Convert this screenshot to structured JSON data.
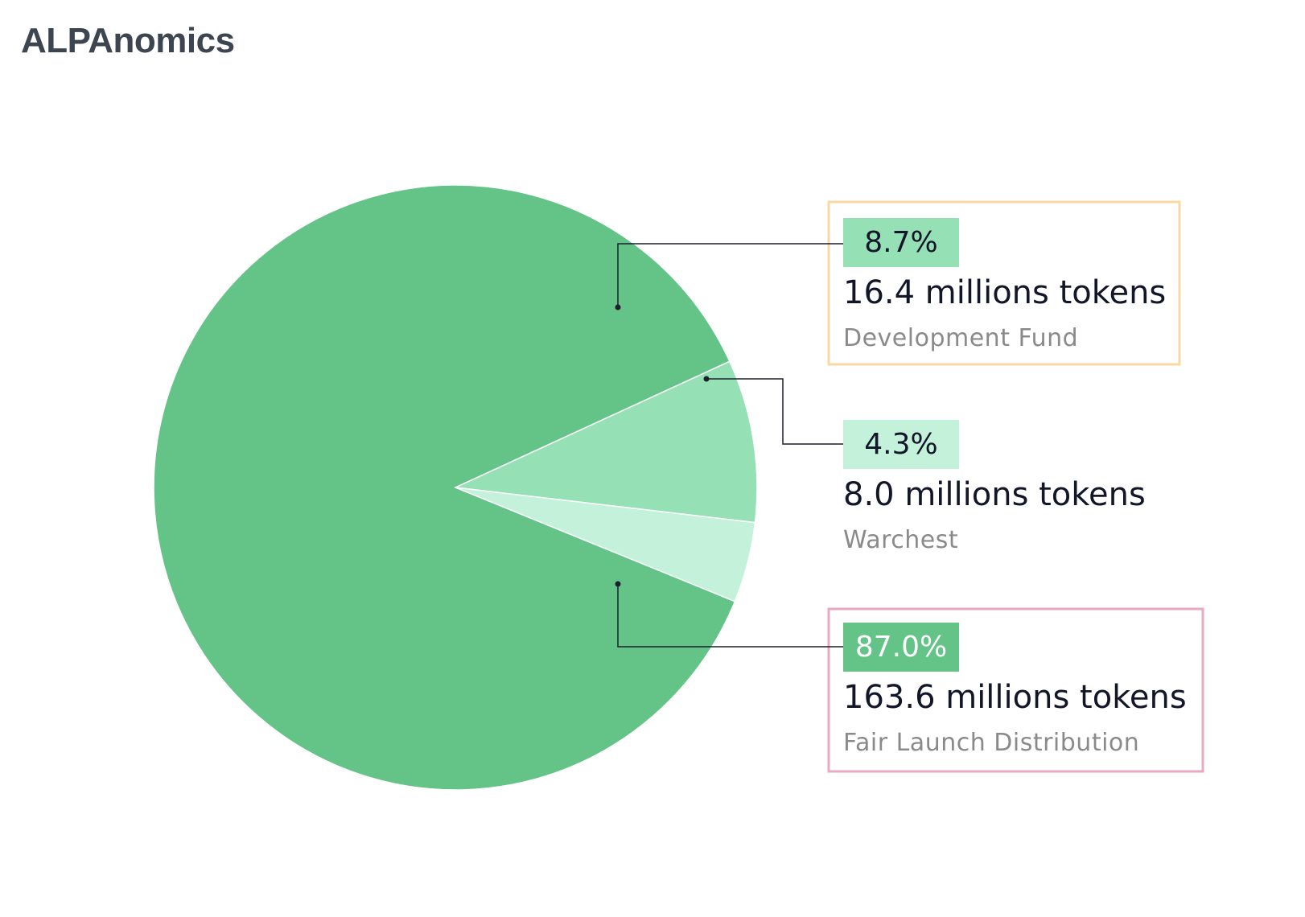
{
  "page": {
    "title": "ALPAnomics"
  },
  "chart_data": {
    "type": "pie",
    "title": "ALPAnomics",
    "unit": "millions tokens",
    "slices": [
      {
        "label": "Development Fund",
        "percent": 8.7,
        "value": 16.4,
        "percent_text": "8.7%",
        "value_text": "16.4 millions tokens",
        "color": "#95e1b5",
        "label_bg": "#95e1b5",
        "label_text_color": "#121628",
        "box_color": "#f7d9a3"
      },
      {
        "label": "Warchest",
        "percent": 4.3,
        "value": 8.0,
        "percent_text": "4.3%",
        "value_text": "8.0 millions tokens",
        "color": "#c3f1da",
        "label_bg": "#c3f1da",
        "label_text_color": "#121628",
        "box_color": null
      },
      {
        "label": "Fair Launch Distribution",
        "percent": 87.0,
        "value": 163.6,
        "percent_text": "87.0%",
        "value_text": "163.6 millions tokens",
        "color": "#64c386",
        "label_bg": "#64c386",
        "label_text_color": "#ffffff",
        "box_color": "#e9a9c3"
      }
    ]
  }
}
